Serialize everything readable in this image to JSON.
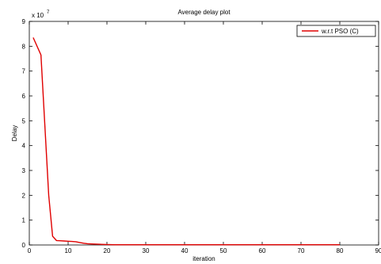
{
  "chart_data": {
    "type": "line",
    "title": "Average delay plot",
    "xlabel": "iteration",
    "ylabel": "Delay",
    "y_exponent_label": "x 10",
    "y_exponent_power": "7",
    "xlim": [
      0,
      90
    ],
    "ylim": [
      0,
      9
    ],
    "xticks": [
      "0",
      "10",
      "20",
      "30",
      "40",
      "50",
      "60",
      "70",
      "80",
      "90"
    ],
    "yticks": [
      "0",
      "1",
      "2",
      "3",
      "4",
      "5",
      "6",
      "7",
      "8",
      "9"
    ],
    "grid": false,
    "legend_position": "top-right",
    "series": [
      {
        "name": "w.r.t PSO (C)",
        "color": "#e00000",
        "x": [
          1,
          3,
          5,
          6,
          7,
          8,
          9,
          10,
          11,
          12,
          13,
          14,
          15,
          16,
          18,
          20,
          22,
          25,
          30,
          40,
          50,
          60,
          70,
          80
        ],
        "y": [
          8.35,
          7.65,
          2.0,
          0.35,
          0.18,
          0.17,
          0.16,
          0.15,
          0.14,
          0.13,
          0.1,
          0.07,
          0.05,
          0.04,
          0.03,
          0.02,
          0.01,
          0.01,
          0.01,
          0.01,
          0.01,
          0.01,
          0.01,
          0.01
        ]
      }
    ]
  }
}
